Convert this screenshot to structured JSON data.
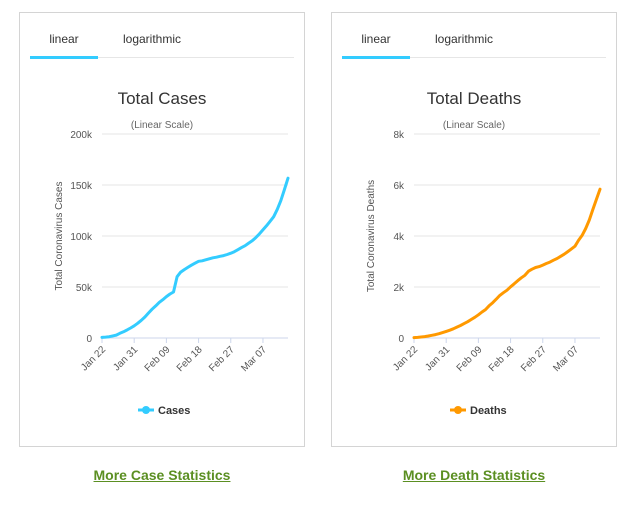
{
  "tabs": [
    "linear",
    "logarithmic"
  ],
  "links": {
    "cases": "More Case Statistics",
    "deaths": "More Death Statistics"
  },
  "chart_data": [
    {
      "type": "line",
      "title": "Total Cases",
      "subtitle": "(Linear Scale)",
      "xlabel": "",
      "ylabel": "Total Coronavirus Cases",
      "x_ticks": [
        "Jan 22",
        "Jan 31",
        "Feb 09",
        "Feb 18",
        "Feb 27",
        "Mar 07"
      ],
      "y_ticks": [
        "0",
        "50k",
        "100k",
        "150k",
        "200k"
      ],
      "ylim": [
        0,
        200000
      ],
      "x_start": "Jan 22",
      "grid": true,
      "legend": "bottom",
      "color": "#33ccff",
      "series": [
        {
          "name": "Cases",
          "values": [
            580,
            845,
            1317,
            2015,
            2800,
            4581,
            6058,
            7813,
            9823,
            11950,
            14553,
            17391,
            20630,
            24545,
            28266,
            31439,
            34876,
            37552,
            40553,
            43099,
            45134,
            60068,
            64584,
            67100,
            69197,
            71329,
            73332,
            75184,
            75700,
            76677,
            77673,
            78651,
            79205,
            80087,
            80828,
            81820,
            83112,
            84615,
            86604,
            88585,
            90443,
            93016,
            95314,
            98425,
            102050,
            106099,
            109991,
            114381,
            118948,
            126214,
            134576,
            145483,
            156653
          ]
        }
      ]
    },
    {
      "type": "line",
      "title": "Total Deaths",
      "subtitle": "(Linear Scale)",
      "xlabel": "",
      "ylabel": "Total Coronavirus Deaths",
      "x_ticks": [
        "Jan 22",
        "Jan 31",
        "Feb 09",
        "Feb 18",
        "Feb 27",
        "Mar 07"
      ],
      "y_ticks": [
        "0",
        "2k",
        "4k",
        "6k",
        "8k"
      ],
      "ylim": [
        0,
        8000
      ],
      "x_start": "Jan 22",
      "grid": true,
      "legend": "bottom",
      "color": "#ff9900",
      "series": [
        {
          "name": "Deaths",
          "values": [
            17,
            25,
            41,
            56,
            80,
            106,
            132,
            170,
            213,
            259,
            304,
            362,
            426,
            492,
            565,
            638,
            724,
            813,
            910,
            1018,
            1115,
            1261,
            1383,
            1526,
            1669,
            1775,
            1873,
            2009,
            2126,
            2247,
            2360,
            2460,
            2618,
            2699,
            2763,
            2800,
            2858,
            2923,
            2977,
            3050,
            3117,
            3202,
            3285,
            3387,
            3494,
            3599,
            3827,
            4025,
            4296,
            4628,
            5034,
            5437,
            5835
          ]
        }
      ]
    }
  ]
}
